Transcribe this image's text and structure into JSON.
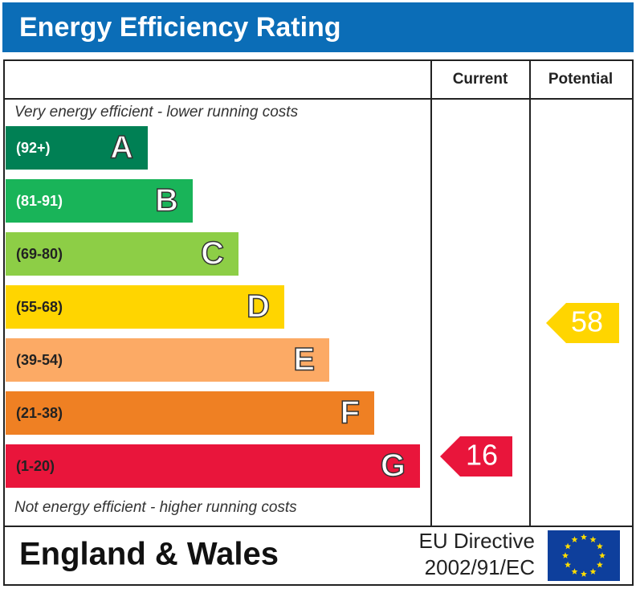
{
  "title": "Energy Efficiency Rating",
  "columns": [
    "Current",
    "Potential"
  ],
  "top_note": "Very energy efficient - lower running costs",
  "bottom_note": "Not energy efficient - higher running costs",
  "bands": [
    {
      "range": "(92+)",
      "letter": "A",
      "color": "#008054"
    },
    {
      "range": "(81-91)",
      "letter": "B",
      "color": "#19b459"
    },
    {
      "range": "(69-80)",
      "letter": "C",
      "color": "#8dce46"
    },
    {
      "range": "(55-68)",
      "letter": "D",
      "color": "#ffd500"
    },
    {
      "range": "(39-54)",
      "letter": "E",
      "color": "#fcaa65"
    },
    {
      "range": "(21-38)",
      "letter": "F",
      "color": "#ef8023"
    },
    {
      "range": "(1-20)",
      "letter": "G",
      "color": "#e9153b"
    }
  ],
  "current": 16,
  "potential": 58,
  "footer": {
    "region": "England & Wales",
    "directive": [
      "EU Directive",
      "2002/91/EC"
    ]
  }
}
